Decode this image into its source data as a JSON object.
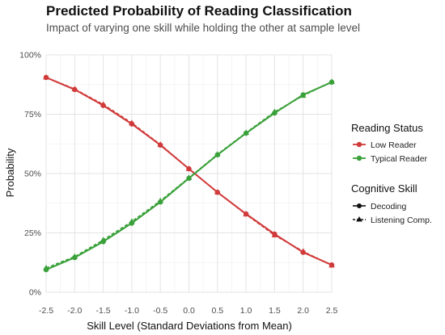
{
  "chart_data": {
    "type": "line",
    "title": "Predicted Probability of Reading Classification",
    "subtitle": "Impact of varying one skill while holding the other at sample level",
    "xlabel": "Skill Level (Standard Deviations from Mean)",
    "ylabel": "Probability",
    "xlim": [
      -2.5,
      2.5
    ],
    "ylim": [
      0,
      1
    ],
    "x": [
      -2.5,
      -2.0,
      -1.5,
      -1.0,
      -0.5,
      0.0,
      0.5,
      1.0,
      1.5,
      2.0,
      2.5
    ],
    "x_ticks": [
      "-2.5",
      "-2.0",
      "-1.5",
      "-1.0",
      "-0.5",
      "0.0",
      "0.5",
      "1.0",
      "1.5",
      "2.0",
      "2.5"
    ],
    "y_ticks": [
      {
        "value": 0,
        "label": "0%"
      },
      {
        "value": 0.25,
        "label": "25%"
      },
      {
        "value": 0.5,
        "label": "50%"
      },
      {
        "value": 0.75,
        "label": "75%"
      },
      {
        "value": 1.0,
        "label": "100%"
      }
    ],
    "grid": true,
    "legend_placement": "right",
    "legends": {
      "color": {
        "title": "Reading Status",
        "items": [
          {
            "label": "Low Reader",
            "color": "#d13a3a"
          },
          {
            "label": "Typical Reader",
            "color": "#3aa13a"
          }
        ]
      },
      "shape": {
        "title": "Cognitive Skill",
        "items": [
          {
            "label": "Decoding",
            "shape": "circle",
            "line": "solid"
          },
          {
            "label": "Listening Comp.",
            "shape": "triangle",
            "line": "dashed"
          }
        ]
      }
    },
    "series": [
      {
        "status": "Low Reader",
        "skill": "Decoding",
        "color": "#d13a3a",
        "shape": "circle",
        "line": "solid",
        "values": [
          0.905,
          0.854,
          0.787,
          0.709,
          0.62,
          0.52,
          0.421,
          0.33,
          0.245,
          0.168,
          0.115
        ]
      },
      {
        "status": "Low Reader",
        "skill": "Listening Comp.",
        "color": "#d13a3a",
        "shape": "triangle",
        "line": "dashed",
        "values": [
          0.905,
          0.856,
          0.791,
          0.713,
          0.622,
          0.52,
          0.421,
          0.328,
          0.24,
          0.172,
          0.113
        ]
      },
      {
        "status": "Typical Reader",
        "skill": "Decoding",
        "color": "#3aa13a",
        "shape": "circle",
        "line": "solid",
        "values": [
          0.095,
          0.146,
          0.213,
          0.291,
          0.38,
          0.48,
          0.579,
          0.67,
          0.755,
          0.832,
          0.885
        ]
      },
      {
        "status": "Typical Reader",
        "skill": "Listening Comp.",
        "color": "#3aa13a",
        "shape": "triangle",
        "line": "dashed",
        "values": [
          0.102,
          0.15,
          0.22,
          0.298,
          0.385,
          0.482,
          0.581,
          0.672,
          0.76,
          0.828,
          0.887
        ]
      }
    ]
  }
}
